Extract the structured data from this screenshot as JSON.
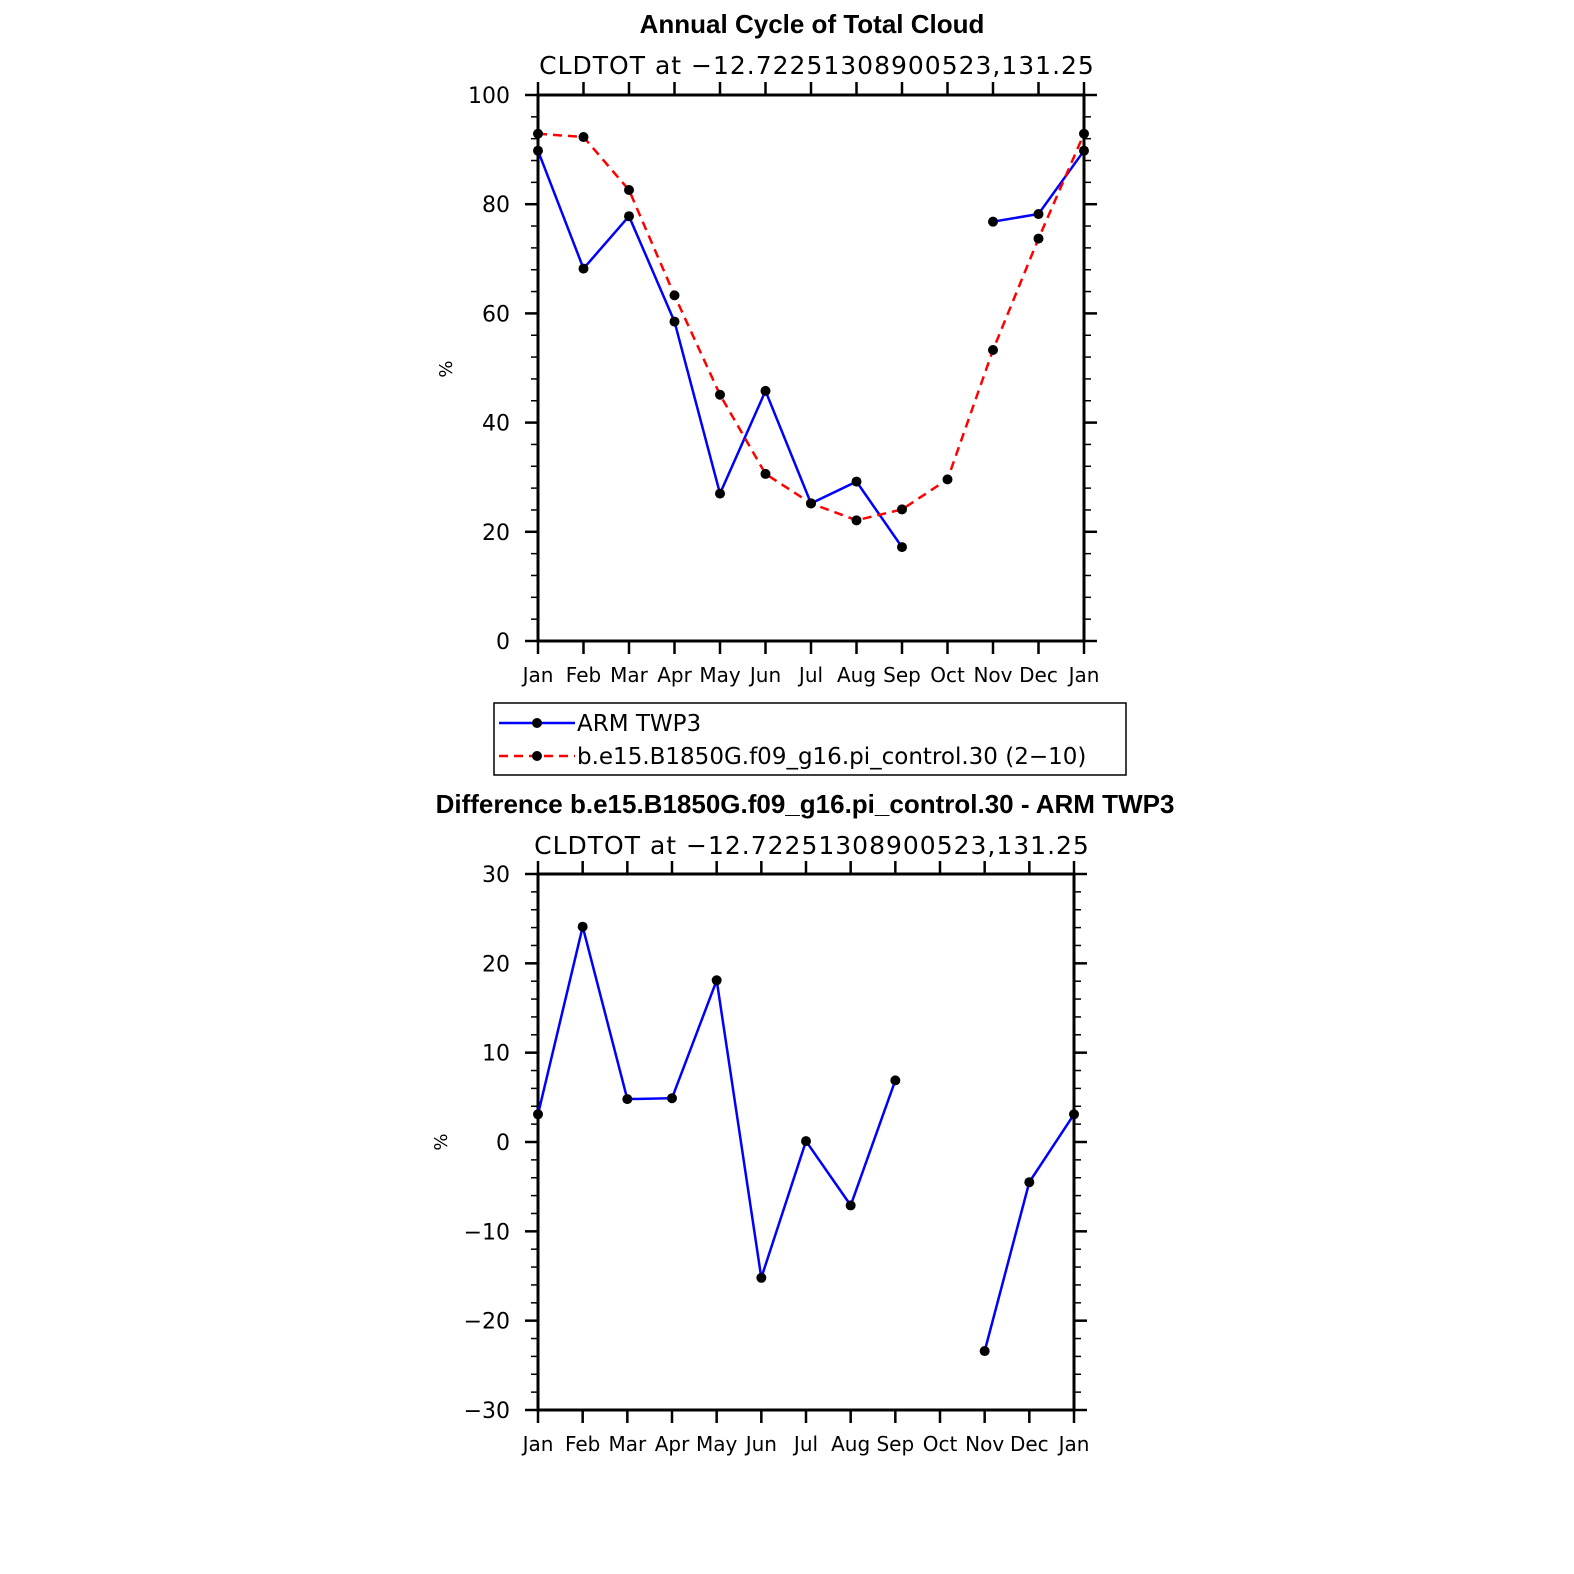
{
  "chart_data": [
    {
      "type": "line",
      "title": "Annual Cycle of Total Cloud",
      "subtitle": "CLDTOT at −12.72251308900523,131.25",
      "xlabel": "",
      "ylabel": "%",
      "categories": [
        "Jan",
        "Feb",
        "Mar",
        "Apr",
        "May",
        "Jun",
        "Jul",
        "Aug",
        "Sep",
        "Oct",
        "Nov",
        "Dec",
        "Jan"
      ],
      "ylim": [
        0,
        100
      ],
      "yticks": [
        "0",
        "20",
        "40",
        "60",
        "80",
        "100"
      ],
      "series": [
        {
          "name": "ARM  TWP3",
          "color": "#0000ff",
          "dash": "solid",
          "values": [
            89.8,
            68.2,
            77.8,
            58.5,
            27.0,
            45.8,
            25.2,
            29.2,
            17.2,
            null,
            76.8,
            78.2,
            89.8
          ]
        },
        {
          "name": "b.e15.B1850G.f09_g16.pi_control.30 (2−10)",
          "color": "#ff0000",
          "dash": "dashed",
          "values": [
            92.9,
            92.3,
            82.6,
            63.3,
            45.1,
            30.6,
            25.2,
            22.1,
            24.1,
            29.6,
            53.3,
            73.7,
            92.9
          ]
        }
      ],
      "legend": "below"
    },
    {
      "type": "line",
      "title": "Difference b.e15.B1850G.f09_g16.pi_control.30 - ARM TWP3",
      "subtitle": "CLDTOT at −12.72251308900523,131.25",
      "xlabel": "",
      "ylabel": "%",
      "categories": [
        "Jan",
        "Feb",
        "Mar",
        "Apr",
        "May",
        "Jun",
        "Jul",
        "Aug",
        "Sep",
        "Oct",
        "Nov",
        "Dec",
        "Jan"
      ],
      "ylim": [
        -30,
        30
      ],
      "yticks": [
        "−30",
        "−20",
        "−10",
        "0",
        "10",
        "20",
        "30"
      ],
      "series": [
        {
          "name": "Difference",
          "color": "#0000ff",
          "dash": "solid",
          "values": [
            3.1,
            24.1,
            4.8,
            4.9,
            18.1,
            -15.2,
            0.1,
            -7.1,
            6.9,
            null,
            -23.4,
            -4.5,
            3.1
          ]
        }
      ]
    }
  ]
}
